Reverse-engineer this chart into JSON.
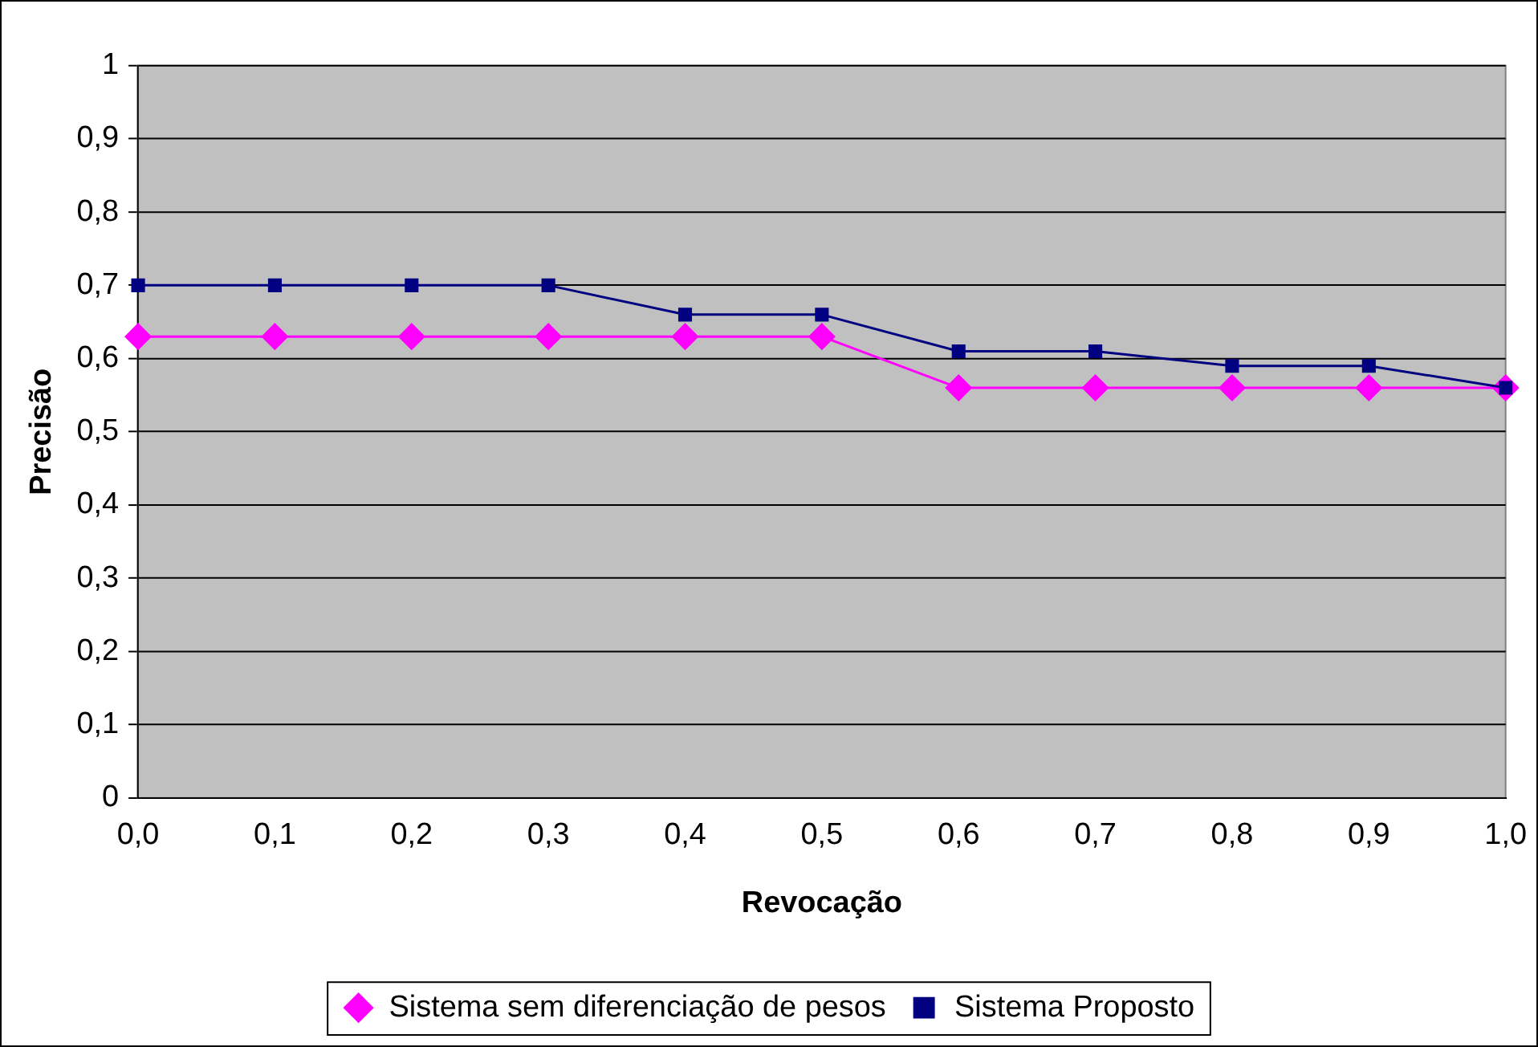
{
  "chart_data": {
    "type": "line",
    "xlabel": "Revocação",
    "ylabel": "Precisão",
    "categories": [
      "0,0",
      "0,1",
      "0,2",
      "0,3",
      "0,4",
      "0,5",
      "0,6",
      "0,7",
      "0,8",
      "0,9",
      "1,0"
    ],
    "series": [
      {
        "name": "Sistema sem diferenciação de pesos",
        "color": "#ff00ff",
        "marker": "diamond",
        "values": [
          0.63,
          0.63,
          0.63,
          0.63,
          0.63,
          0.63,
          0.56,
          0.56,
          0.56,
          0.56,
          0.56
        ]
      },
      {
        "name": "Sistema Proposto",
        "color": "#000080",
        "marker": "square",
        "values": [
          0.7,
          0.7,
          0.7,
          0.7,
          0.66,
          0.66,
          0.61,
          0.61,
          0.59,
          0.59,
          0.56
        ]
      }
    ],
    "ylim": [
      0,
      1
    ],
    "yticks": [
      0,
      {
        "value": 0.1,
        "label": "0,1"
      },
      {
        "value": 0.2,
        "label": "0,2"
      },
      {
        "value": 0.3,
        "label": "0,3"
      },
      {
        "value": 0.4,
        "label": "0,4"
      },
      {
        "value": 0.5,
        "label": "0,5"
      },
      {
        "value": 0.6,
        "label": "0,6"
      },
      {
        "value": 0.7,
        "label": "0,7"
      },
      {
        "value": 0.8,
        "label": "0,8"
      },
      {
        "value": 0.9,
        "label": "0,9"
      },
      1
    ],
    "grid": "y",
    "legend": "bottom",
    "line_style": "solid"
  }
}
